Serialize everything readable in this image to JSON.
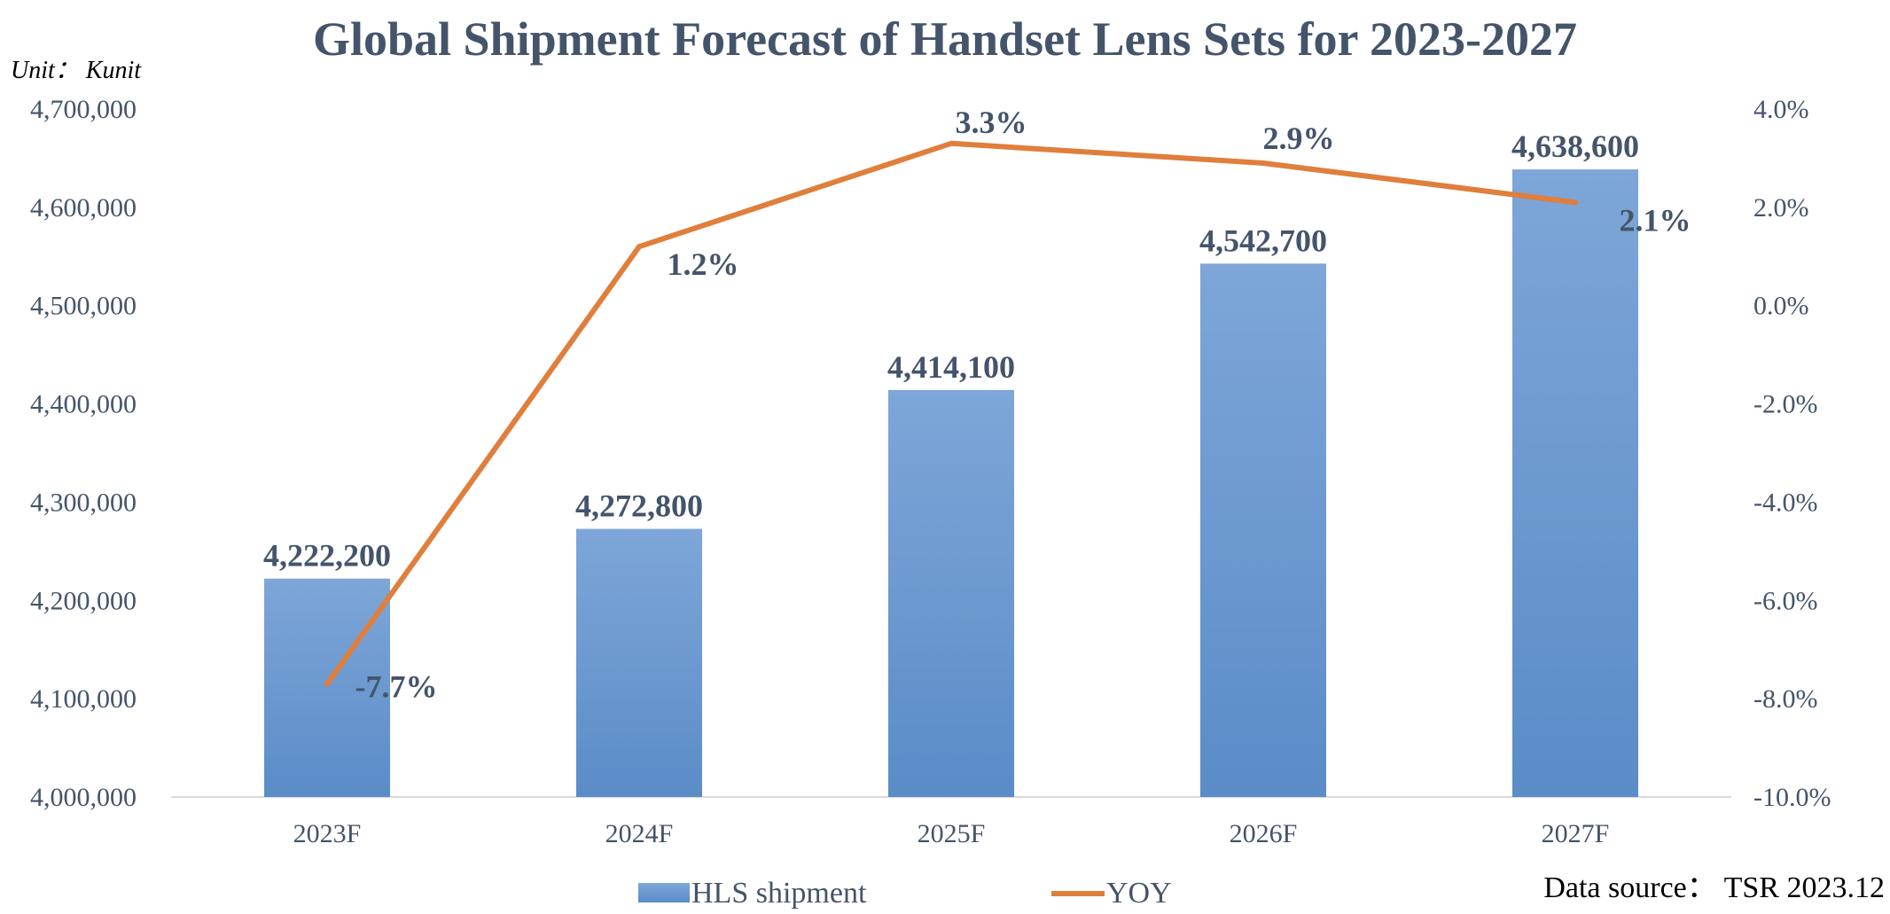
{
  "chart_data": {
    "type": "bar",
    "title": "Global Shipment Forecast of Handset Lens Sets for 2023-2027",
    "unit_label": "Unit： Kunit",
    "categories": [
      "2023F",
      "2024F",
      "2025F",
      "2026F",
      "2027F"
    ],
    "series": [
      {
        "name": "HLS shipment",
        "type": "bar",
        "axis": "left",
        "values": [
          4222200,
          4272800,
          4414100,
          4542700,
          4638600
        ],
        "labels": [
          "4,222,200",
          "4,272,800",
          "4,414,100",
          "4,542,700",
          "4,638,600"
        ],
        "color": "#5b8fcc"
      },
      {
        "name": "YOY",
        "type": "line",
        "axis": "right",
        "values": [
          -7.7,
          1.2,
          3.3,
          2.9,
          2.1
        ],
        "labels": [
          "-7.7%",
          "1.2%",
          "3.3%",
          "2.9%",
          "2.1%"
        ],
        "color": "#e07e3c"
      }
    ],
    "y_left": {
      "ylim": [
        4000000,
        4700000
      ],
      "ticks": [
        4000000,
        4100000,
        4200000,
        4300000,
        4400000,
        4500000,
        4600000,
        4700000
      ],
      "tick_labels": [
        "4,000,000",
        "4,100,000",
        "4,200,000",
        "4,300,000",
        "4,400,000",
        "4,500,000",
        "4,600,000",
        "4,700,000"
      ]
    },
    "y_right": {
      "ylim": [
        -10,
        4
      ],
      "ticks": [
        -10,
        -8,
        -6,
        -4,
        -2,
        0,
        2,
        4
      ],
      "tick_labels": [
        "-10.0%",
        "-8.0%",
        "-6.0%",
        "-4.0%",
        "-2.0%",
        "0.0%",
        "2.0%",
        "4.0%"
      ]
    },
    "grid": false,
    "legend_position": "bottom",
    "source": "Data source： TSR 2023.12"
  }
}
